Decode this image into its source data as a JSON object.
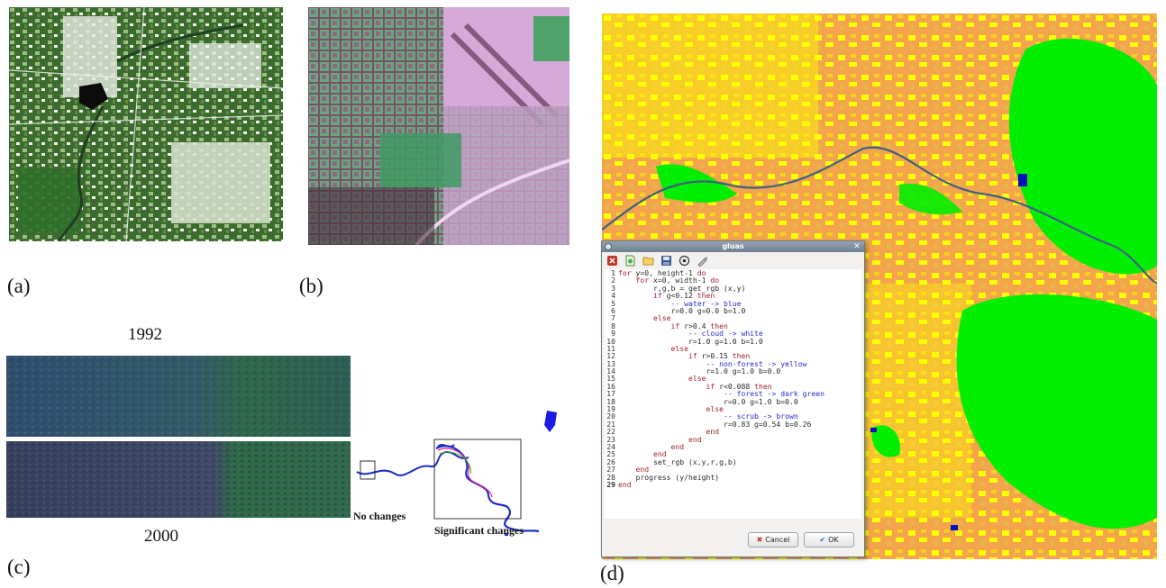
{
  "captions": {
    "a": "(a)",
    "b": "(b)",
    "c": "(c)",
    "d": "(d)"
  },
  "panel_c": {
    "year_top": "1992",
    "year_bottom": "2000",
    "no_changes": "No changes",
    "significant_changes": "Significant changes"
  },
  "dialog": {
    "title": "gluas",
    "toolbar_icons": [
      "stop-icon",
      "new-file-icon",
      "open-folder-icon",
      "save-icon",
      "target-icon",
      "brush-icon"
    ],
    "code_lines": [
      {
        "num": "1",
        "segments": [
          {
            "t": "for",
            "c": "kw"
          },
          {
            "t": " y=0, height-1 ",
            "c": ""
          },
          {
            "t": "do",
            "c": "kw"
          }
        ]
      },
      {
        "num": "2",
        "segments": [
          {
            "t": "    ",
            "c": ""
          },
          {
            "t": "for",
            "c": "kw"
          },
          {
            "t": " x=0, width-1 ",
            "c": ""
          },
          {
            "t": "do",
            "c": "kw"
          }
        ]
      },
      {
        "num": "3",
        "segments": [
          {
            "t": "        r,g,b = get_rgb (x,y)",
            "c": ""
          }
        ]
      },
      {
        "num": "4",
        "segments": [
          {
            "t": "        ",
            "c": ""
          },
          {
            "t": "if",
            "c": "kw"
          },
          {
            "t": " g<0.12 ",
            "c": ""
          },
          {
            "t": "then",
            "c": "kw"
          }
        ]
      },
      {
        "num": "5",
        "segments": [
          {
            "t": "            -- water -> blue",
            "c": "cm"
          }
        ]
      },
      {
        "num": "6",
        "segments": [
          {
            "t": "            r=0.0 g=0.0 b=1.0",
            "c": ""
          }
        ]
      },
      {
        "num": "7",
        "segments": [
          {
            "t": "        ",
            "c": ""
          },
          {
            "t": "else",
            "c": "kw"
          }
        ]
      },
      {
        "num": "8",
        "segments": [
          {
            "t": "            ",
            "c": ""
          },
          {
            "t": "if",
            "c": "kw"
          },
          {
            "t": " r>0.4 ",
            "c": ""
          },
          {
            "t": "then",
            "c": "kw"
          }
        ]
      },
      {
        "num": "9",
        "segments": [
          {
            "t": "                -- cloud -> white",
            "c": "cm"
          }
        ]
      },
      {
        "num": "10",
        "segments": [
          {
            "t": "                r=1.0 g=1.0 b=1.0",
            "c": ""
          }
        ]
      },
      {
        "num": "11",
        "segments": [
          {
            "t": "            ",
            "c": ""
          },
          {
            "t": "else",
            "c": "kw"
          }
        ]
      },
      {
        "num": "12",
        "segments": [
          {
            "t": "                ",
            "c": ""
          },
          {
            "t": "if",
            "c": "kw"
          },
          {
            "t": " r>0.15 ",
            "c": ""
          },
          {
            "t": "then",
            "c": "kw"
          }
        ]
      },
      {
        "num": "13",
        "segments": [
          {
            "t": "                    -- non-forest -> yellow",
            "c": "cm"
          }
        ]
      },
      {
        "num": "14",
        "segments": [
          {
            "t": "                    r=1.0 g=1.0 b=0.0",
            "c": ""
          }
        ]
      },
      {
        "num": "15",
        "segments": [
          {
            "t": "                ",
            "c": ""
          },
          {
            "t": "else",
            "c": "kw"
          }
        ]
      },
      {
        "num": "16",
        "segments": [
          {
            "t": "                    ",
            "c": ""
          },
          {
            "t": "if",
            "c": "kw"
          },
          {
            "t": " r<0.088 ",
            "c": ""
          },
          {
            "t": "then",
            "c": "kw"
          }
        ]
      },
      {
        "num": "17",
        "segments": [
          {
            "t": "                        -- forest -> dark green",
            "c": "cm"
          }
        ]
      },
      {
        "num": "18",
        "segments": [
          {
            "t": "                        r=0.0 g=1.0 b=0.0",
            "c": ""
          }
        ]
      },
      {
        "num": "19",
        "segments": [
          {
            "t": "                    ",
            "c": ""
          },
          {
            "t": "else",
            "c": "kw"
          }
        ]
      },
      {
        "num": "20",
        "segments": [
          {
            "t": "                        -- scrub -> brown",
            "c": "cm"
          }
        ]
      },
      {
        "num": "21",
        "segments": [
          {
            "t": "                        r=0.83 g=0.54 b=0.26",
            "c": ""
          }
        ]
      },
      {
        "num": "22",
        "segments": [
          {
            "t": "                    ",
            "c": ""
          },
          {
            "t": "end",
            "c": "kw"
          }
        ]
      },
      {
        "num": "23",
        "segments": [
          {
            "t": "                ",
            "c": ""
          },
          {
            "t": "end",
            "c": "kw"
          }
        ]
      },
      {
        "num": "24",
        "segments": [
          {
            "t": "            ",
            "c": ""
          },
          {
            "t": "end",
            "c": "kw"
          }
        ]
      },
      {
        "num": "25",
        "segments": [
          {
            "t": "        ",
            "c": ""
          },
          {
            "t": "end",
            "c": "kw"
          }
        ]
      },
      {
        "num": "26",
        "segments": [
          {
            "t": "        set_rgb (x,y,r,g,b)",
            "c": ""
          }
        ]
      },
      {
        "num": "27",
        "segments": [
          {
            "t": "    ",
            "c": ""
          },
          {
            "t": "end",
            "c": "kw"
          }
        ]
      },
      {
        "num": "28",
        "segments": [
          {
            "t": "    progress (y/height)",
            "c": ""
          }
        ]
      },
      {
        "num": "29",
        "segments": [
          {
            "t": "end",
            "c": "kw"
          }
        ],
        "bold": true
      }
    ],
    "cancel_label": "Cancel",
    "ok_label": "OK"
  },
  "colors": {
    "scrub": "#f0a24a",
    "non_forest": "#ffff00",
    "forest": "#00ee00",
    "water": "#0000ff",
    "keyword": "#a51d2d",
    "comment": "#2a2ad0"
  }
}
